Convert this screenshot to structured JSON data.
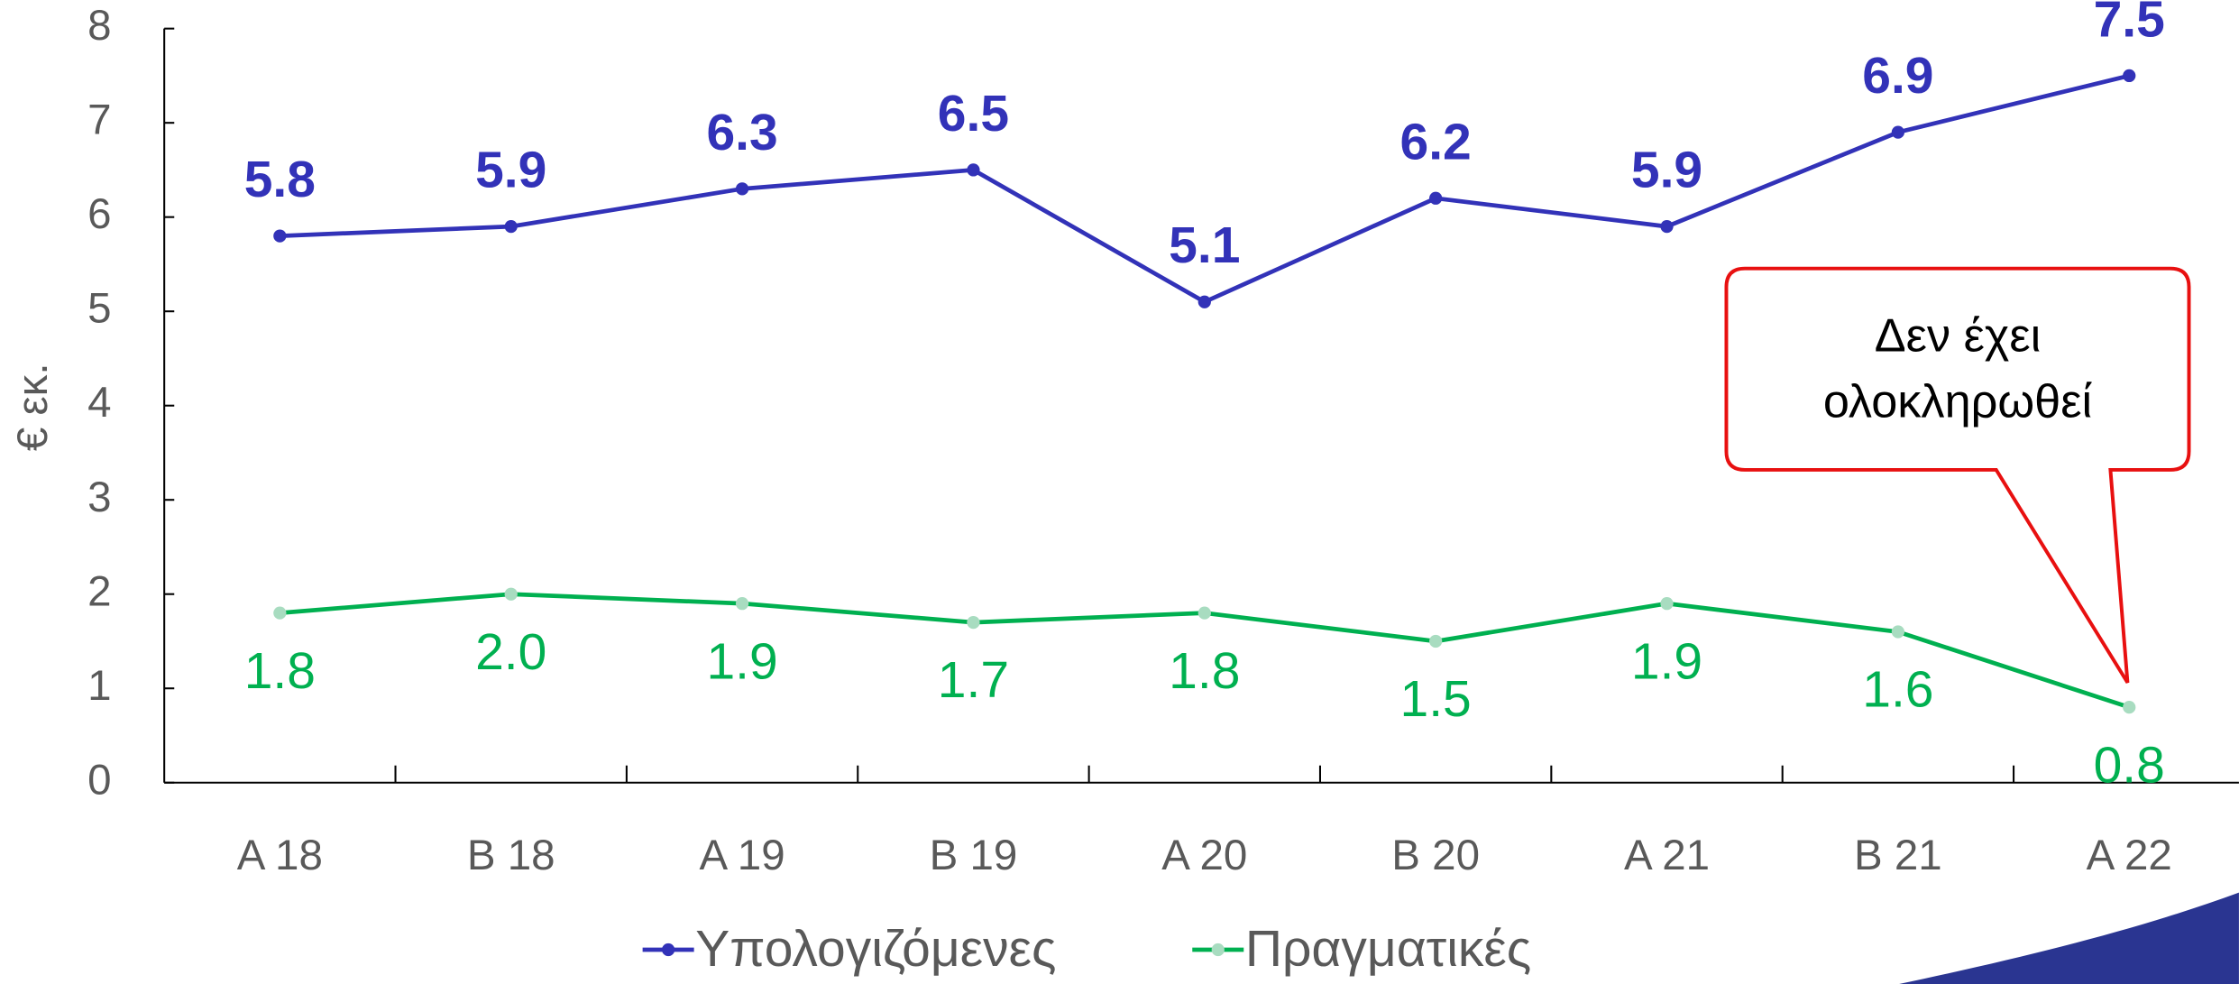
{
  "chart_data": {
    "type": "line",
    "y_axis_label": "€ εκ.",
    "categories": [
      "Α 18",
      "Β 18",
      "Α 19",
      "Β 19",
      "Α 20",
      "Β 20",
      "Α 21",
      "Β 21",
      "Α 22"
    ],
    "series": [
      {
        "name": "Υπολογιζόμενες",
        "color": "#3232b8",
        "marker_color": "#3232b8",
        "values": [
          5.8,
          5.9,
          6.3,
          6.5,
          5.1,
          6.2,
          5.9,
          6.9,
          7.5
        ]
      },
      {
        "name": "Πραγματικές",
        "color": "#00b050",
        "marker_color": "#a8dcc0",
        "values": [
          1.8,
          2.0,
          1.9,
          1.7,
          1.8,
          1.5,
          1.9,
          1.6,
          0.8
        ],
        "value_labels": [
          "1.8",
          "2.0",
          "1.9",
          "1.7",
          "1.8",
          "1.5",
          "1.9",
          "1.6",
          "0.8"
        ]
      }
    ],
    "ylim": [
      0,
      8
    ],
    "yticks": [
      0,
      1,
      2,
      3,
      4,
      5,
      6,
      7,
      8
    ],
    "grid": false,
    "legend": "bottom",
    "annotation": "Δεν έχει ολοκληρωθεί"
  }
}
